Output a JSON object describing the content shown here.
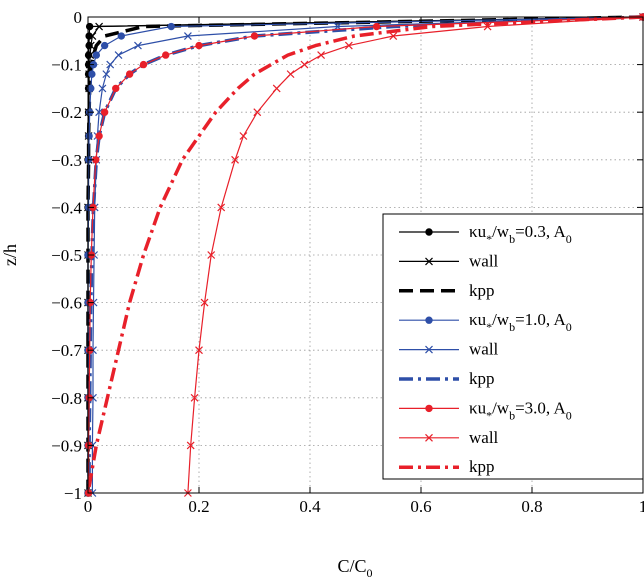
{
  "chart_data": {
    "type": "line",
    "xlabel": "C/C",
    "xlabel_sub": "0",
    "ylabel": "z/h",
    "xlim": [
      0,
      1
    ],
    "ylim": [
      -1,
      0
    ],
    "grid": true,
    "legend_placement": "right",
    "xticks": [
      "0",
      "0.2",
      "0.4",
      "0.6",
      "0.8",
      "1"
    ],
    "yticks": [
      "0",
      "−0.1",
      "−0.2",
      "−0.3",
      "−0.4",
      "−0.5",
      "−0.6",
      "−0.7",
      "−0.8",
      "−0.9",
      "−1"
    ],
    "z": [
      0,
      -0.02,
      -0.04,
      -0.06,
      -0.08,
      -0.1,
      -0.12,
      -0.15,
      -0.2,
      -0.25,
      -0.3,
      -0.4,
      -0.5,
      -0.6,
      -0.7,
      -0.8,
      -0.9,
      -1.0
    ],
    "series": [
      {
        "name": "κu*/wb=0.3, A0",
        "legend_main": "κu",
        "legend_sub1": "*",
        "legend_mid": "/w",
        "legend_sub2": "b",
        "legend_tail": "=0.3, A",
        "legend_sub3": "0",
        "color": "#000000",
        "style": "solid",
        "marker": "dot",
        "x": [
          1.0,
          0.003,
          0.002,
          0.002,
          0.001,
          0.001,
          0.001,
          0.001,
          0.001,
          0.001,
          0.0,
          0.0,
          0.0,
          0.0,
          0.0,
          0.0,
          0.0,
          0.0
        ]
      },
      {
        "name": "wall",
        "color": "#000000",
        "style": "solid",
        "marker": "x",
        "x": [
          1.0,
          0.02,
          0.008,
          0.005,
          0.004,
          0.003,
          0.002,
          0.002,
          0.001,
          0.001,
          0.001,
          0.0,
          0.0,
          0.0,
          0.0,
          0.0,
          0.0,
          0.0
        ]
      },
      {
        "name": "kpp",
        "color": "#000000",
        "style": "dash",
        "marker": "none",
        "x": [
          1.0,
          0.1,
          0.03,
          0.015,
          0.01,
          0.007,
          0.005,
          0.003,
          0.002,
          0.001,
          0.001,
          0.0,
          0.0,
          0.0,
          0.0,
          0.0,
          0.0,
          0.0
        ]
      },
      {
        "name": "κu*/wb=1.0, A0",
        "legend_main": "κu",
        "legend_sub1": "*",
        "legend_mid": "/w",
        "legend_sub2": "b",
        "legend_tail": "=1.0, A",
        "legend_sub3": "0",
        "color": "#2e4fa8",
        "style": "solid",
        "marker": "dot",
        "x": [
          1.0,
          0.15,
          0.06,
          0.03,
          0.015,
          0.01,
          0.007,
          0.005,
          0.003,
          0.002,
          0.001,
          0.001,
          0.0,
          0.0,
          0.0,
          0.0,
          0.0,
          0.0
        ]
      },
      {
        "name": "wall",
        "color": "#2e4fa8",
        "style": "solid",
        "marker": "x",
        "x": [
          1.0,
          0.45,
          0.18,
          0.09,
          0.055,
          0.04,
          0.033,
          0.026,
          0.02,
          0.017,
          0.015,
          0.012,
          0.011,
          0.01,
          0.009,
          0.009,
          0.008,
          0.008
        ]
      },
      {
        "name": "kpp",
        "color": "#2e4fa8",
        "style": "dashdot",
        "marker": "none",
        "x": [
          1.0,
          0.55,
          0.3,
          0.2,
          0.14,
          0.1,
          0.075,
          0.05,
          0.03,
          0.02,
          0.015,
          0.01,
          0.007,
          0.005,
          0.004,
          0.003,
          0.002,
          0.002
        ]
      },
      {
        "name": "κu*/wb=3.0, A0",
        "legend_main": "κu",
        "legend_sub1": "*",
        "legend_mid": "/w",
        "legend_sub2": "b",
        "legend_tail": "=3.0, A",
        "legend_sub3": "0",
        "color": "#e8202a",
        "style": "solid",
        "marker": "dot",
        "x": [
          1.0,
          0.52,
          0.3,
          0.2,
          0.14,
          0.1,
          0.075,
          0.05,
          0.03,
          0.02,
          0.014,
          0.009,
          0.006,
          0.004,
          0.003,
          0.002,
          0.001,
          0.001
        ]
      },
      {
        "name": "wall",
        "color": "#e8202a",
        "style": "solid",
        "marker": "x",
        "x": [
          1.0,
          0.72,
          0.55,
          0.47,
          0.42,
          0.39,
          0.365,
          0.34,
          0.305,
          0.28,
          0.265,
          0.24,
          0.222,
          0.21,
          0.2,
          0.192,
          0.185,
          0.18
        ]
      },
      {
        "name": "kpp",
        "color": "#e8202a",
        "style": "dashdot",
        "marker": "none",
        "x": [
          1.0,
          0.62,
          0.48,
          0.41,
          0.36,
          0.33,
          0.3,
          0.27,
          0.23,
          0.2,
          0.17,
          0.13,
          0.1,
          0.075,
          0.055,
          0.035,
          0.015,
          0.0
        ]
      }
    ]
  }
}
